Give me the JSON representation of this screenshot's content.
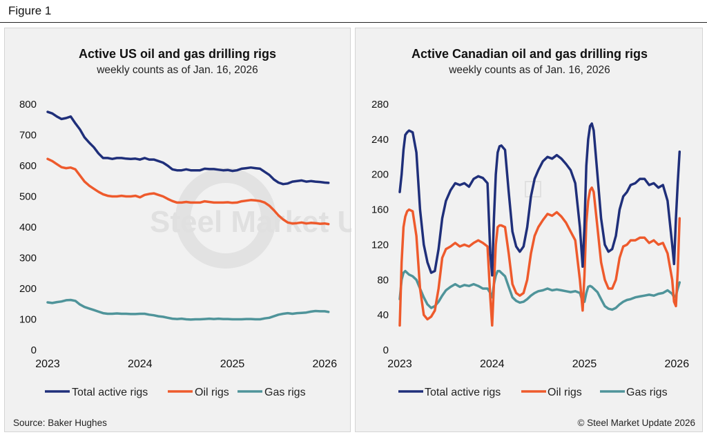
{
  "figure_label": "Figure 1",
  "source": "Source: Baker Hughes",
  "copyright": "© Steel Market Update 2026",
  "watermark": "Steel Market Update",
  "legend": [
    {
      "label": "Total active rigs",
      "color": "#1f2f7a"
    },
    {
      "label": "Oil rigs",
      "color": "#ee5a2c"
    },
    {
      "label": "Gas rigs",
      "color": "#4f949a"
    }
  ],
  "chart_data": [
    {
      "type": "line",
      "title": "Active US oil and gas drilling rigs",
      "subtitle": "weekly counts as of Jan. 16, 2026",
      "xlabel": "",
      "ylabel": "",
      "ylim": [
        0,
        800
      ],
      "yticks": [
        "0",
        "100",
        "200",
        "300",
        "400",
        "500",
        "600",
        "700",
        "800"
      ],
      "xlim": [
        2023,
        2026.05
      ],
      "xticks": [
        "2023",
        "2024",
        "2025",
        "2026"
      ],
      "grid": false,
      "legend_position": "bottom",
      "series": [
        {
          "name": "Total active rigs",
          "color": "#1f2f7a",
          "x": [
            2023.0,
            2023.05,
            2023.1,
            2023.15,
            2023.2,
            2023.25,
            2023.3,
            2023.35,
            2023.4,
            2023.45,
            2023.5,
            2023.55,
            2023.6,
            2023.65,
            2023.7,
            2023.75,
            2023.8,
            2023.85,
            2023.9,
            2023.95,
            2024.0,
            2024.05,
            2024.1,
            2024.15,
            2024.2,
            2024.25,
            2024.3,
            2024.35,
            2024.4,
            2024.45,
            2024.5,
            2024.55,
            2024.6,
            2024.65,
            2024.7,
            2024.75,
            2024.8,
            2024.85,
            2024.9,
            2024.95,
            2025.0,
            2025.05,
            2025.1,
            2025.15,
            2025.2,
            2025.25,
            2025.3,
            2025.35,
            2025.4,
            2025.45,
            2025.5,
            2025.55,
            2025.6,
            2025.65,
            2025.7,
            2025.75,
            2025.8,
            2025.85,
            2025.9,
            2025.95,
            2026.0,
            2026.04
          ],
          "y": [
            775,
            770,
            760,
            752,
            755,
            760,
            738,
            718,
            692,
            675,
            660,
            640,
            625,
            625,
            622,
            625,
            625,
            623,
            622,
            623,
            620,
            625,
            620,
            620,
            615,
            610,
            600,
            588,
            585,
            585,
            588,
            585,
            585,
            585,
            590,
            589,
            589,
            587,
            585,
            586,
            583,
            585,
            590,
            592,
            594,
            592,
            590,
            580,
            570,
            555,
            545,
            540,
            542,
            548,
            550,
            552,
            548,
            550,
            548,
            547,
            545,
            544
          ]
        },
        {
          "name": "Oil rigs",
          "color": "#ee5a2c",
          "x": [
            2023.0,
            2023.05,
            2023.1,
            2023.15,
            2023.2,
            2023.25,
            2023.3,
            2023.35,
            2023.4,
            2023.45,
            2023.5,
            2023.55,
            2023.6,
            2023.65,
            2023.7,
            2023.75,
            2023.8,
            2023.85,
            2023.9,
            2023.95,
            2024.0,
            2024.05,
            2024.1,
            2024.15,
            2024.2,
            2024.25,
            2024.3,
            2024.35,
            2024.4,
            2024.45,
            2024.5,
            2024.55,
            2024.6,
            2024.65,
            2024.7,
            2024.75,
            2024.8,
            2024.85,
            2024.9,
            2024.95,
            2025.0,
            2025.05,
            2025.1,
            2025.15,
            2025.2,
            2025.25,
            2025.3,
            2025.35,
            2025.4,
            2025.45,
            2025.5,
            2025.55,
            2025.6,
            2025.65,
            2025.7,
            2025.75,
            2025.8,
            2025.85,
            2025.9,
            2025.95,
            2026.0,
            2026.04
          ],
          "y": [
            622,
            615,
            605,
            595,
            592,
            594,
            588,
            568,
            548,
            535,
            525,
            515,
            507,
            502,
            500,
            500,
            502,
            500,
            500,
            502,
            497,
            505,
            508,
            510,
            505,
            500,
            492,
            485,
            480,
            480,
            482,
            480,
            480,
            480,
            484,
            482,
            480,
            480,
            480,
            481,
            479,
            480,
            484,
            486,
            488,
            487,
            485,
            480,
            470,
            455,
            438,
            425,
            415,
            412,
            413,
            415,
            412,
            414,
            413,
            411,
            412,
            410
          ]
        },
        {
          "name": "Gas rigs",
          "color": "#4f949a",
          "x": [
            2023.0,
            2023.05,
            2023.1,
            2023.15,
            2023.2,
            2023.25,
            2023.3,
            2023.35,
            2023.4,
            2023.45,
            2023.5,
            2023.55,
            2023.6,
            2023.65,
            2023.7,
            2023.75,
            2023.8,
            2023.85,
            2023.9,
            2023.95,
            2024.0,
            2024.05,
            2024.1,
            2024.15,
            2024.2,
            2024.25,
            2024.3,
            2024.35,
            2024.4,
            2024.45,
            2024.5,
            2024.55,
            2024.6,
            2024.65,
            2024.7,
            2024.75,
            2024.8,
            2024.85,
            2024.9,
            2024.95,
            2025.0,
            2025.05,
            2025.1,
            2025.15,
            2025.2,
            2025.25,
            2025.3,
            2025.35,
            2025.4,
            2025.45,
            2025.5,
            2025.55,
            2025.6,
            2025.65,
            2025.7,
            2025.75,
            2025.8,
            2025.85,
            2025.9,
            2025.95,
            2026.0,
            2026.04
          ],
          "y": [
            155,
            153,
            156,
            158,
            162,
            163,
            160,
            148,
            140,
            135,
            130,
            125,
            120,
            118,
            118,
            119,
            118,
            118,
            117,
            117,
            118,
            118,
            115,
            113,
            110,
            108,
            105,
            102,
            101,
            102,
            100,
            99,
            100,
            100,
            101,
            102,
            101,
            102,
            101,
            101,
            100,
            100,
            100,
            101,
            101,
            100,
            100,
            103,
            105,
            110,
            115,
            118,
            120,
            118,
            120,
            121,
            122,
            125,
            127,
            126,
            126,
            124
          ]
        }
      ]
    },
    {
      "type": "line",
      "title": "Active Canadian oil and gas drilling rigs",
      "subtitle": "weekly counts as of Jan. 16, 2026",
      "xlabel": "",
      "ylabel": "",
      "ylim": [
        0,
        280
      ],
      "yticks": [
        "0",
        "40",
        "80",
        "120",
        "160",
        "200",
        "240",
        "280"
      ],
      "xlim": [
        2023,
        2026.05
      ],
      "xticks": [
        "2023",
        "2024",
        "2025",
        "2026"
      ],
      "grid": false,
      "legend_position": "bottom",
      "series": [
        {
          "name": "Total active rigs",
          "color": "#1f2f7a",
          "x": [
            2023.0,
            2023.02,
            2023.04,
            2023.06,
            2023.08,
            2023.1,
            2023.14,
            2023.18,
            2023.22,
            2023.26,
            2023.3,
            2023.34,
            2023.38,
            2023.42,
            2023.46,
            2023.5,
            2023.55,
            2023.6,
            2023.65,
            2023.7,
            2023.75,
            2023.8,
            2023.85,
            2023.9,
            2023.95,
            2023.98,
            2024.0,
            2024.02,
            2024.04,
            2024.06,
            2024.08,
            2024.1,
            2024.14,
            2024.18,
            2024.22,
            2024.26,
            2024.3,
            2024.34,
            2024.38,
            2024.42,
            2024.46,
            2024.5,
            2024.55,
            2024.6,
            2024.65,
            2024.7,
            2024.75,
            2024.8,
            2024.85,
            2024.9,
            2024.95,
            2024.98,
            2025.0,
            2025.02,
            2025.04,
            2025.06,
            2025.08,
            2025.1,
            2025.14,
            2025.18,
            2025.22,
            2025.26,
            2025.3,
            2025.34,
            2025.38,
            2025.42,
            2025.46,
            2025.5,
            2025.55,
            2025.6,
            2025.65,
            2025.7,
            2025.75,
            2025.8,
            2025.85,
            2025.9,
            2025.95,
            2025.97,
            2025.99,
            2026.01,
            2026.03
          ],
          "y": [
            180,
            200,
            228,
            245,
            248,
            250,
            248,
            225,
            160,
            120,
            100,
            88,
            90,
            115,
            150,
            170,
            182,
            190,
            188,
            190,
            186,
            195,
            198,
            196,
            190,
            110,
            85,
            150,
            200,
            225,
            232,
            233,
            228,
            180,
            135,
            118,
            112,
            118,
            140,
            175,
            195,
            205,
            215,
            220,
            218,
            222,
            218,
            212,
            205,
            190,
            140,
            95,
            140,
            210,
            240,
            255,
            258,
            250,
            200,
            150,
            120,
            112,
            115,
            130,
            160,
            175,
            180,
            188,
            190,
            195,
            195,
            188,
            190,
            185,
            188,
            170,
            120,
            98,
            150,
            190,
            226
          ]
        },
        {
          "name": "Oil rigs",
          "color": "#ee5a2c",
          "x": [
            2023.0,
            2023.02,
            2023.04,
            2023.06,
            2023.08,
            2023.1,
            2023.14,
            2023.18,
            2023.22,
            2023.26,
            2023.3,
            2023.34,
            2023.38,
            2023.42,
            2023.46,
            2023.5,
            2023.55,
            2023.6,
            2023.65,
            2023.7,
            2023.75,
            2023.8,
            2023.85,
            2023.9,
            2023.95,
            2023.98,
            2024.0,
            2024.02,
            2024.04,
            2024.06,
            2024.08,
            2024.1,
            2024.14,
            2024.18,
            2024.22,
            2024.26,
            2024.3,
            2024.34,
            2024.38,
            2024.42,
            2024.46,
            2024.5,
            2024.55,
            2024.6,
            2024.65,
            2024.7,
            2024.75,
            2024.8,
            2024.85,
            2024.9,
            2024.95,
            2024.98,
            2025.0,
            2025.02,
            2025.04,
            2025.06,
            2025.08,
            2025.1,
            2025.14,
            2025.18,
            2025.22,
            2025.26,
            2025.3,
            2025.34,
            2025.38,
            2025.42,
            2025.46,
            2025.5,
            2025.55,
            2025.6,
            2025.65,
            2025.7,
            2025.75,
            2025.8,
            2025.85,
            2025.9,
            2025.95,
            2025.97,
            2025.99,
            2026.01,
            2026.03
          ],
          "y": [
            28,
            100,
            140,
            152,
            158,
            160,
            158,
            130,
            70,
            40,
            35,
            38,
            45,
            70,
            105,
            115,
            118,
            122,
            118,
            120,
            118,
            122,
            125,
            122,
            118,
            60,
            28,
            75,
            120,
            140,
            142,
            142,
            140,
            110,
            75,
            65,
            62,
            65,
            80,
            110,
            130,
            140,
            148,
            155,
            153,
            157,
            152,
            145,
            135,
            125,
            80,
            45,
            85,
            145,
            170,
            182,
            185,
            180,
            140,
            100,
            80,
            70,
            70,
            80,
            105,
            118,
            120,
            125,
            125,
            128,
            128,
            122,
            125,
            120,
            122,
            110,
            80,
            55,
            50,
            90,
            150
          ]
        },
        {
          "name": "Gas rigs",
          "color": "#4f949a",
          "x": [
            2023.0,
            2023.02,
            2023.04,
            2023.06,
            2023.08,
            2023.1,
            2023.14,
            2023.18,
            2023.22,
            2023.26,
            2023.3,
            2023.34,
            2023.38,
            2023.42,
            2023.46,
            2023.5,
            2023.55,
            2023.6,
            2023.65,
            2023.7,
            2023.75,
            2023.8,
            2023.85,
            2023.9,
            2023.95,
            2023.98,
            2024.0,
            2024.02,
            2024.04,
            2024.06,
            2024.08,
            2024.1,
            2024.14,
            2024.18,
            2024.22,
            2024.26,
            2024.3,
            2024.34,
            2024.38,
            2024.42,
            2024.46,
            2024.5,
            2024.55,
            2024.6,
            2024.65,
            2024.7,
            2024.75,
            2024.8,
            2024.85,
            2024.9,
            2024.95,
            2024.98,
            2025.0,
            2025.02,
            2025.04,
            2025.06,
            2025.08,
            2025.1,
            2025.14,
            2025.18,
            2025.22,
            2025.26,
            2025.3,
            2025.34,
            2025.38,
            2025.42,
            2025.46,
            2025.5,
            2025.55,
            2025.6,
            2025.65,
            2025.7,
            2025.75,
            2025.8,
            2025.85,
            2025.9,
            2025.95,
            2025.97,
            2025.99,
            2026.01,
            2026.03
          ],
          "y": [
            58,
            80,
            88,
            90,
            88,
            86,
            84,
            80,
            70,
            60,
            52,
            48,
            50,
            55,
            62,
            68,
            72,
            75,
            72,
            74,
            73,
            75,
            73,
            70,
            70,
            65,
            60,
            75,
            85,
            90,
            90,
            88,
            84,
            72,
            60,
            56,
            54,
            55,
            58,
            62,
            65,
            67,
            68,
            70,
            68,
            69,
            68,
            67,
            66,
            67,
            65,
            55,
            55,
            65,
            72,
            73,
            72,
            70,
            66,
            58,
            50,
            47,
            46,
            48,
            52,
            55,
            57,
            58,
            60,
            61,
            62,
            63,
            62,
            64,
            65,
            68,
            64,
            60,
            62,
            70,
            77
          ]
        }
      ]
    }
  ]
}
